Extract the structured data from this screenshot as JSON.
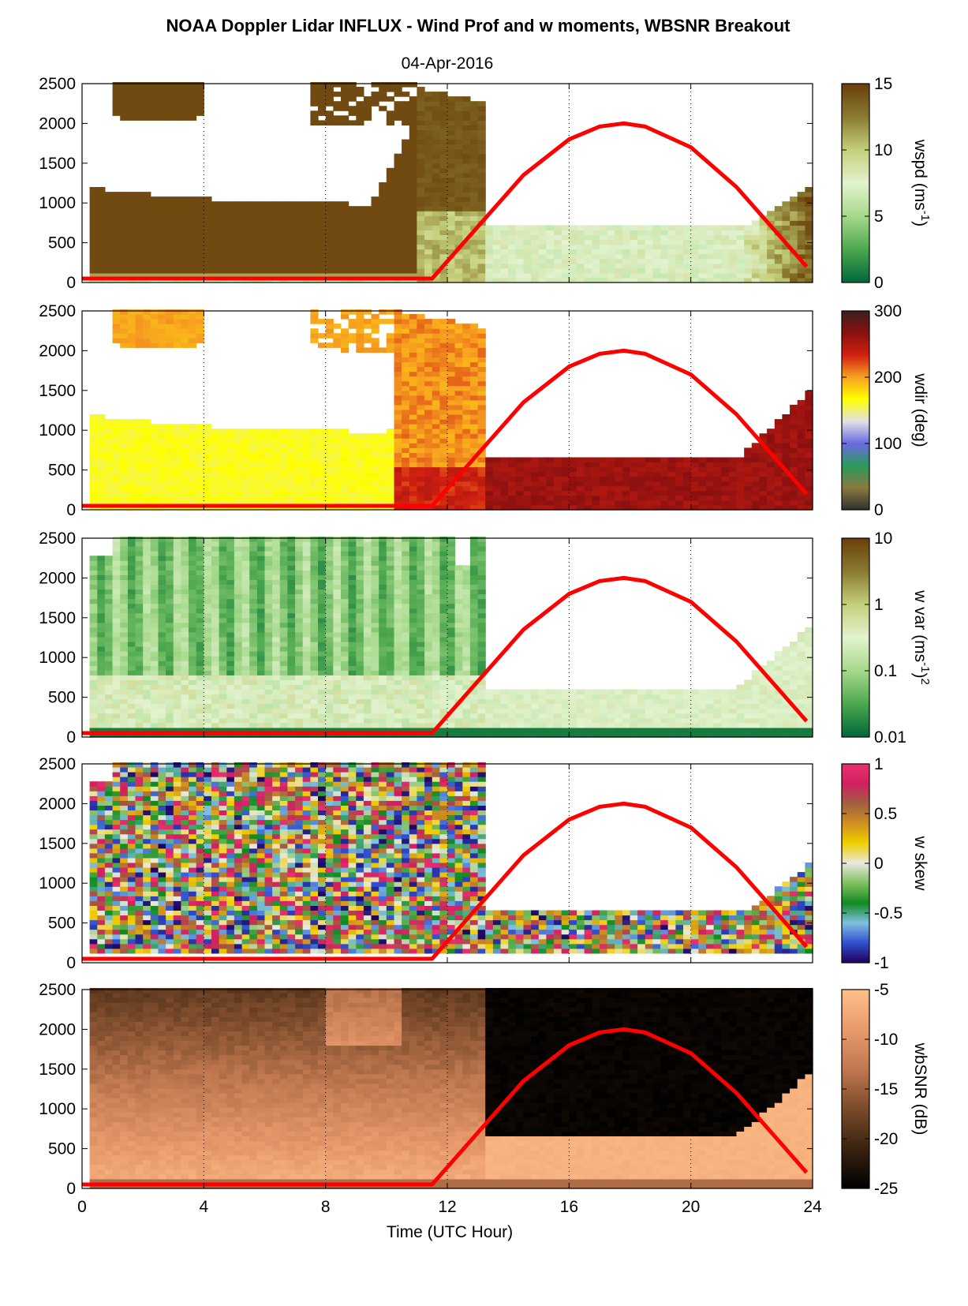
{
  "title": "NOAA Doppler Lidar INFLUX - Wind Prof and w moments, WBSNR Breakout",
  "subtitle": "04-Apr-2016",
  "chart_data": {
    "type": "heatmap",
    "xlabel": "Time (UTC Hour)",
    "xlim": [
      0,
      24
    ],
    "xticks": [
      "0",
      "4",
      "8",
      "12",
      "16",
      "20",
      "24"
    ],
    "ylim": [
      0,
      2500
    ],
    "yticks": [
      "0",
      "500",
      "1000",
      "1500",
      "2000",
      "2500"
    ],
    "grid": "dotted vertical lines at 4-hour intervals",
    "overlay": {
      "color": "#ff0000",
      "description": "red solar elevation curve",
      "x": [
        0,
        11.5,
        13,
        14.5,
        16,
        17,
        17.8,
        18.5,
        20,
        21.5,
        23,
        23.8
      ],
      "y": [
        50,
        50,
        700,
        1350,
        1800,
        1960,
        2000,
        1960,
        1700,
        1200,
        550,
        200
      ]
    },
    "panels": [
      {
        "label": "wspd (ms-1)",
        "label_main": "wspd (ms",
        "label_exp": "-1",
        "label_close": ")",
        "colorbar_ticks": [
          "0",
          "5",
          "10",
          "15"
        ],
        "colorbar_colors": [
          "#00683a",
          "#4ea84f",
          "#a6d98c",
          "#e2f3cf",
          "#c4cf7a",
          "#8a7a30",
          "#6a3f0a"
        ]
      },
      {
        "label": "wdir (deg)",
        "label_main": "wdir (deg)",
        "label_exp": "",
        "label_close": "",
        "colorbar_ticks": [
          "0",
          "100",
          "200",
          "300"
        ],
        "colorbar_colors": [
          "#303030",
          "#8a7a40",
          "#2a9a5a",
          "#6a6ae0",
          "#e0e0e8",
          "#ffff00",
          "#f7a020",
          "#d02010",
          "#8a1010",
          "#3a2020"
        ]
      },
      {
        "label": "w var (ms-1)2",
        "label_main": "w var (ms",
        "label_exp": "-1",
        "label_close": ")",
        "label_exp2": "2",
        "colorbar_ticks": [
          "0.01",
          "0.1",
          "1",
          "10"
        ],
        "colorbar_colors": [
          "#00683a",
          "#4ea84f",
          "#a6d98c",
          "#e2f3cf",
          "#c4cf7a",
          "#8a7a30",
          "#6a3f0a"
        ]
      },
      {
        "label": "w skew",
        "label_main": "w skew",
        "label_exp": "",
        "label_close": "",
        "colorbar_ticks": [
          "-1",
          "-0.5",
          "0",
          "0.5",
          "1"
        ],
        "colorbar_colors": [
          "#20005a",
          "#3050d0",
          "#80c0e0",
          "#118a22",
          "#80c060",
          "#e8e8e0",
          "#f0d000",
          "#d09020",
          "#a06040",
          "#d02060",
          "#e83070"
        ]
      },
      {
        "label": "wbSNR (dB)",
        "label_main": "wbSNR (dB)",
        "label_exp": "",
        "label_close": "",
        "colorbar_ticks": [
          "-25",
          "-20",
          "-15",
          "-10",
          "-5"
        ],
        "colorbar_colors": [
          "#000000",
          "#3a2210",
          "#7a4a2a",
          "#c07850",
          "#e89a6c",
          "#ffc08a"
        ]
      }
    ]
  }
}
